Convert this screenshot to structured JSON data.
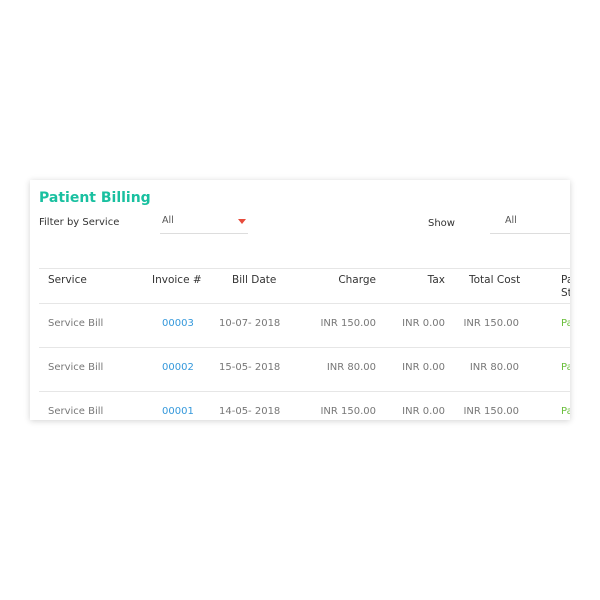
{
  "header": {
    "title": "Patient Billing"
  },
  "filters": {
    "service_label": "Filter by Service",
    "service_value": "All",
    "show_label": "Show",
    "show_value": "All"
  },
  "table": {
    "columns": [
      "Service",
      "Invoice #",
      "Bill Date",
      "Charge",
      "Tax",
      "Total Cost",
      "Pa St"
    ],
    "rows": [
      [
        "Service Bill",
        "00003",
        "10-07- 2018",
        "INR 150.00",
        "INR 0.00",
        "INR 150.00",
        "Pa"
      ],
      [
        "Service Bill",
        "00002",
        "15-05- 2018",
        "INR 80.00",
        "INR 0.00",
        "INR 80.00",
        "Pa"
      ],
      [
        "Service Bill",
        "00001",
        "14-05- 2018",
        "INR 150.00",
        "INR 0.00",
        "INR 150.00",
        "Pa"
      ]
    ]
  }
}
